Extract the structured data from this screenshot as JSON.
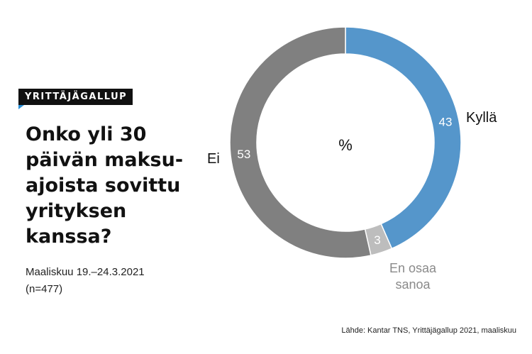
{
  "badge": "YRITTÄJÄGALLUP",
  "question": "Onko yli 30\npäivän maksu-\najoista sovittu\nyrityksen\nkanssa?",
  "survey_date": "Maaliskuu 19.–24.3.2021",
  "sample": "(n=477)",
  "source": "Lähde: Kantar TNS, Yrittäjägallup 2021, maaliskuu",
  "chart_data": {
    "type": "pie",
    "style": "donut",
    "center_label": "%",
    "slices": [
      {
        "label": "Kyllä",
        "value": 43,
        "color": "#5596cb",
        "label_color": "#111111"
      },
      {
        "label": "En osaa\nsanoa",
        "value": 3,
        "color": "#bdbdbd",
        "label_color": "#8a8a8a"
      },
      {
        "label": "Ei",
        "value": 53,
        "color": "#808080",
        "label_color": "#111111"
      }
    ]
  }
}
